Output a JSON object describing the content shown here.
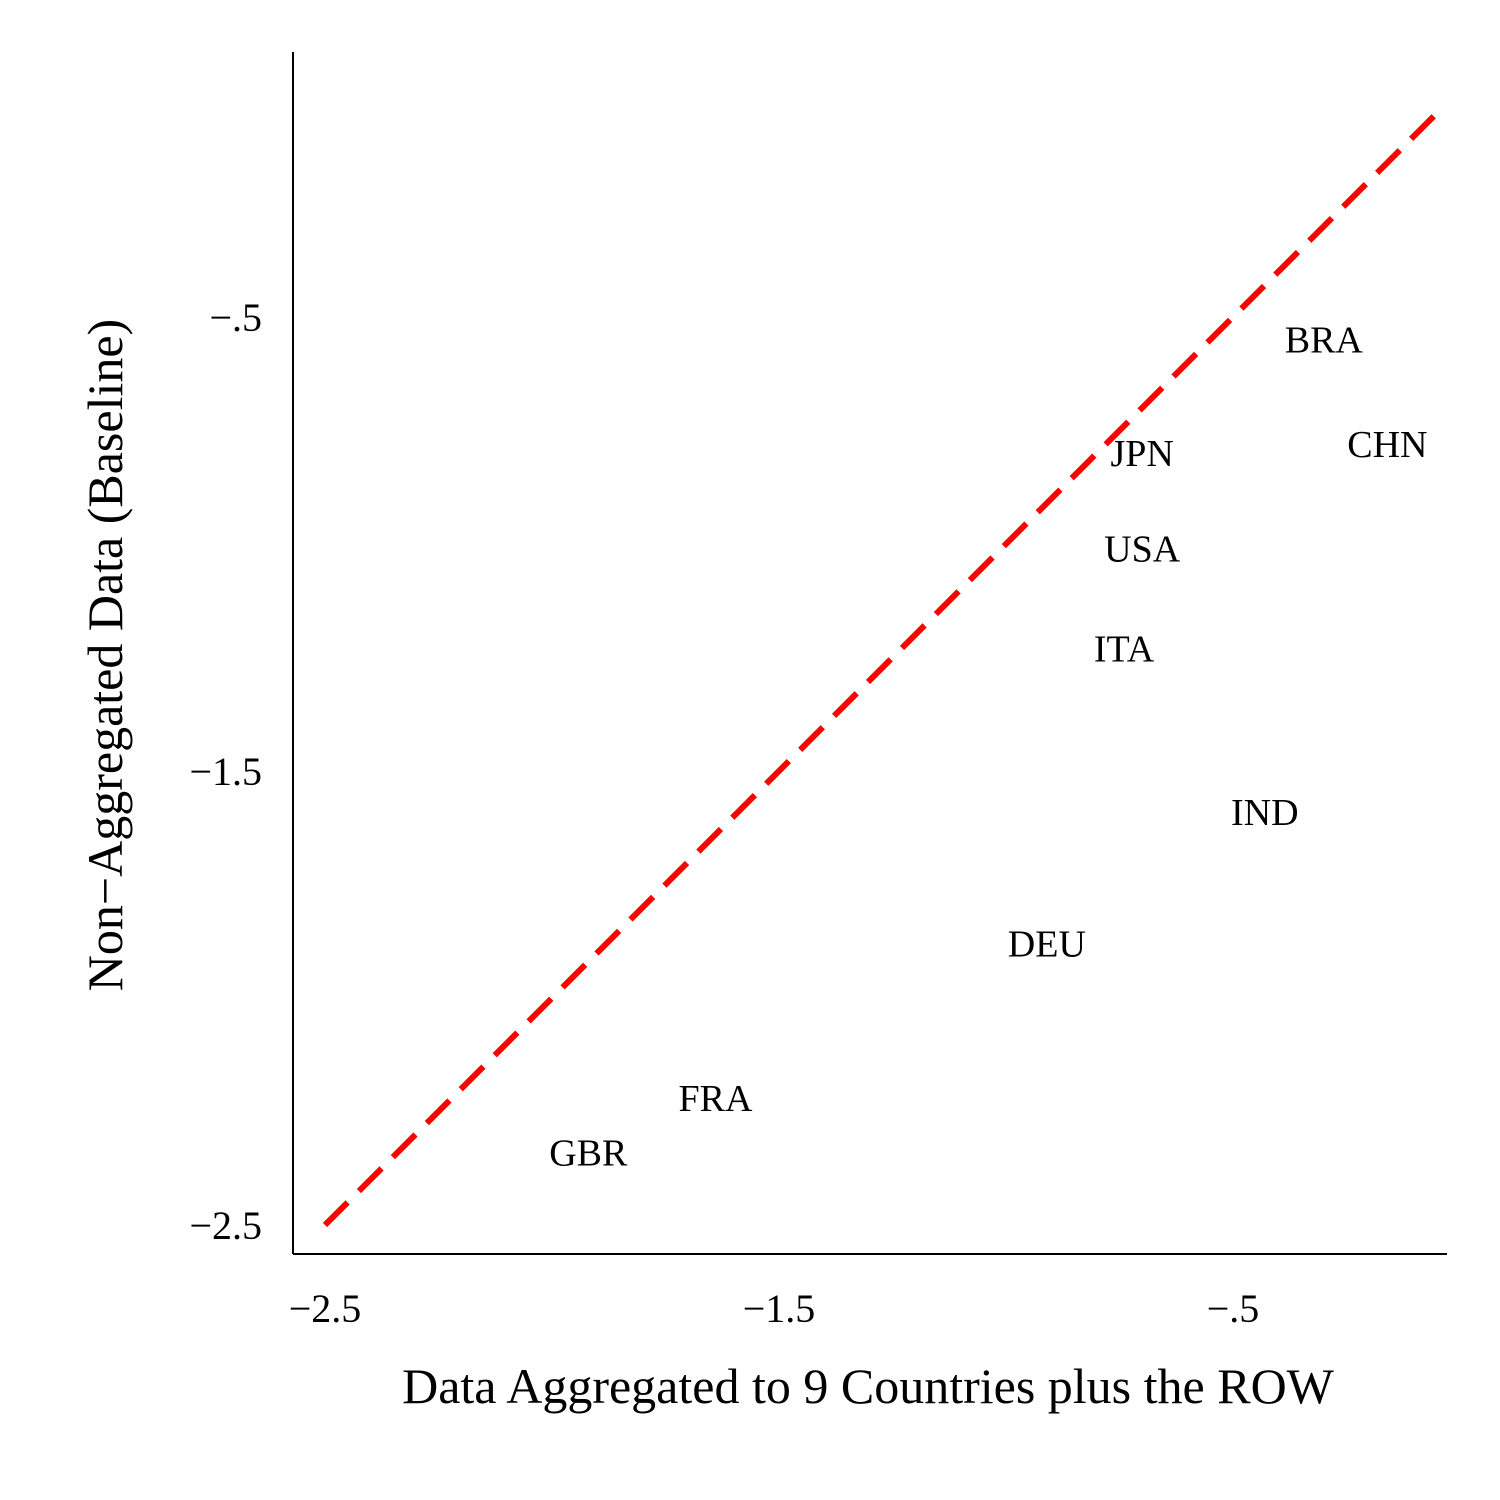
{
  "chart_data": {
    "type": "scatter",
    "title": "",
    "xlabel": "Data Aggregated to 9 Countries plus the ROW",
    "ylabel": "Non−Aggregated Data (Baseline)",
    "xlim": [
      -2.57,
      0.0
    ],
    "ylim": [
      -2.57,
      0.13
    ],
    "xticks": [
      -2.5,
      -1.5,
      -0.5
    ],
    "xtick_labels": [
      "−2.5",
      "−1.5",
      "−.5"
    ],
    "yticks": [
      -2.5,
      -1.5,
      -0.5
    ],
    "ytick_labels": [
      "−2.5",
      "−1.5",
      "−.5"
    ],
    "grid": false,
    "points": [
      {
        "label": "BRA",
        "x": -0.3,
        "y": -0.55
      },
      {
        "label": "CHN",
        "x": -0.16,
        "y": -0.78
      },
      {
        "label": "JPN",
        "x": -0.7,
        "y": -0.8
      },
      {
        "label": "USA",
        "x": -0.7,
        "y": -1.01
      },
      {
        "label": "ITA",
        "x": -0.74,
        "y": -1.23
      },
      {
        "label": "IND",
        "x": -0.43,
        "y": -1.59
      },
      {
        "label": "DEU",
        "x": -0.91,
        "y": -1.88
      },
      {
        "label": "FRA",
        "x": -1.64,
        "y": -2.22
      },
      {
        "label": "GBR",
        "x": -1.92,
        "y": -2.34
      }
    ],
    "reference_line": {
      "x": [
        -2.5,
        -0.05
      ],
      "y": [
        -2.5,
        -0.05
      ],
      "color": "#ff0000",
      "style": "dashed"
    }
  }
}
